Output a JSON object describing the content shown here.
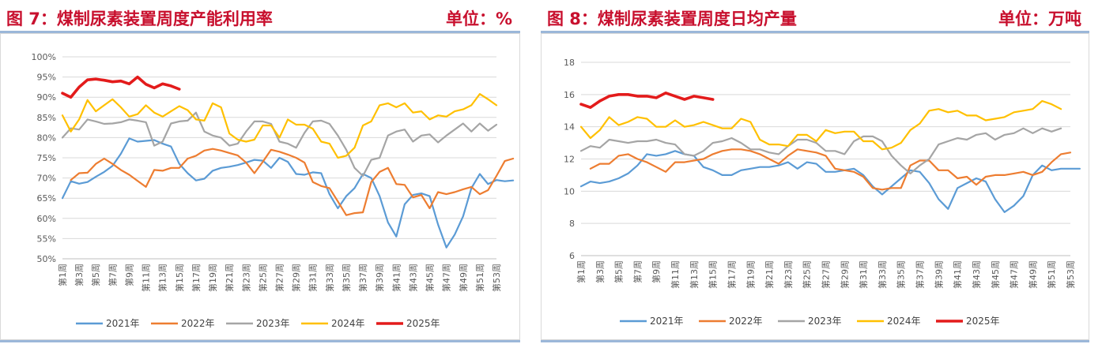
{
  "panels": [
    {
      "title": "图 7：煤制尿素装置周度产能利用率",
      "unit": "单位：%"
    },
    {
      "title": "图 8：煤制尿素装置周度日均产量",
      "unit": "单位：万吨"
    }
  ],
  "chart_data": [
    {
      "type": "line",
      "ylim": [
        50,
        100
      ],
      "yticks": [
        50,
        55,
        60,
        65,
        70,
        75,
        80,
        85,
        90,
        95,
        100
      ],
      "ytick_labels": [
        "50%",
        "55%",
        "60%",
        "65%",
        "70%",
        "75%",
        "80%",
        "85%",
        "90%",
        "95%",
        "100%"
      ],
      "x_tick_labels": [
        "第1周",
        "第3周",
        "第5周",
        "第7周",
        "第9周",
        "第11周",
        "第13周",
        "第15周",
        "第17周",
        "第19周",
        "第21周",
        "第23周",
        "第25周",
        "第27周",
        "第29周",
        "第31周",
        "第33周",
        "第35周",
        "第37周",
        "第39周",
        "第41周",
        "第43周",
        "第45周",
        "第47周",
        "第49周",
        "第51周",
        "第53周"
      ],
      "grid": true,
      "legend": "bottom",
      "series": [
        {
          "name": "2021年",
          "color": "#5b9bd5",
          "values": [
            65,
            69.2,
            68.6,
            69,
            70.3,
            71.5,
            73,
            76,
            79.8,
            79,
            79.2,
            79.4,
            78.5,
            77.8,
            73.5,
            71.2,
            69.4,
            69.8,
            71.8,
            72.5,
            72.8,
            73.2,
            73.8,
            74.5,
            74.3,
            72.5,
            75,
            74,
            71,
            70.8,
            71.4,
            71.2,
            66,
            62.5,
            65.5,
            67.5,
            71,
            70,
            65.5,
            59,
            55.5,
            63.5,
            65.8,
            66.2,
            65.5,
            58.5,
            52.8,
            56,
            60.5,
            67.5,
            71,
            68.5,
            69.5,
            69.2,
            69.4
          ]
        },
        {
          "name": "2022年",
          "color": "#ed7d31",
          "values": [
            null,
            69.5,
            71.2,
            71.3,
            73.5,
            74.8,
            73.5,
            72,
            70.8,
            69.3,
            67.8,
            72,
            71.8,
            72.5,
            72.5,
            74.8,
            75.5,
            76.8,
            77.2,
            76.8,
            76.2,
            75.6,
            73.8,
            71.2,
            74,
            77,
            76.5,
            75.8,
            75,
            73.8,
            69,
            68,
            67.5,
            64.2,
            60.8,
            61.3,
            61.5,
            69,
            71.5,
            72.5,
            68.5,
            68.3,
            65.2,
            65.8,
            62.5,
            66.5,
            66,
            66.5,
            67.2,
            67.8,
            66,
            67,
            70.5,
            74.2,
            74.8
          ]
        },
        {
          "name": "2023年",
          "color": "#a5a5a5",
          "values": [
            80,
            82.3,
            82,
            84.5,
            84,
            83.4,
            83.5,
            83.8,
            84.5,
            84.2,
            83.8,
            78,
            79,
            83.5,
            84,
            84.2,
            86.2,
            81.5,
            80.5,
            80,
            78,
            78.5,
            81.5,
            84,
            84,
            83.4,
            79,
            78.5,
            77.5,
            81.2,
            84,
            84.2,
            83.4,
            80.5,
            77,
            72.5,
            70.5,
            74.5,
            75,
            80.5,
            81.5,
            82,
            79,
            80.5,
            80.8,
            78.8,
            80.5,
            82,
            83.5,
            81.5,
            83.5,
            81.7,
            83.2
          ]
        },
        {
          "name": "2024年",
          "color": "#ffc000",
          "values": [
            85.5,
            81.5,
            84.5,
            89.3,
            86.5,
            88,
            89.5,
            87.5,
            85.2,
            85.8,
            88,
            86.2,
            85.2,
            86.5,
            87.8,
            86.8,
            84.5,
            84.2,
            88.5,
            87.5,
            81,
            79.5,
            79,
            79.5,
            83,
            83,
            80,
            84.5,
            83.2,
            83.2,
            82.2,
            79,
            78.5,
            75,
            75.5,
            77.5,
            83,
            84,
            88,
            88.5,
            87.5,
            88.5,
            86.2,
            86.5,
            84.5,
            85.5,
            85.2,
            86.5,
            87,
            88,
            90.8,
            89.5,
            88
          ]
        },
        {
          "name": "2025年",
          "color": "#e31b1b",
          "width": 3.6,
          "values": [
            91,
            90,
            92.5,
            94.3,
            94.5,
            94.2,
            93.8,
            94,
            93.3,
            95,
            93.2,
            92.3,
            93.3,
            92.8,
            92
          ]
        }
      ]
    },
    {
      "type": "line",
      "ylim": [
        6,
        18
      ],
      "yticks": [
        6,
        8,
        10,
        12,
        14,
        16,
        18
      ],
      "ytick_labels": [
        "6",
        "8",
        "10",
        "12",
        "14",
        "16",
        "18"
      ],
      "x_tick_labels": [
        "第1周",
        "第3周",
        "第5周",
        "第7周",
        "第9周",
        "第11周",
        "第13周",
        "第15周",
        "第17周",
        "第19周",
        "第21周",
        "第23周",
        "第25周",
        "第27周",
        "第29周",
        "第31周",
        "第33周",
        "第35周",
        "第37周",
        "第39周",
        "第41周",
        "第43周",
        "第45周",
        "第47周",
        "第49周",
        "第51周",
        "第53周"
      ],
      "grid": true,
      "legend": "bottom",
      "series": [
        {
          "name": "2021年",
          "color": "#5b9bd5",
          "values": [
            10.3,
            10.6,
            10.5,
            10.6,
            10.8,
            11.1,
            11.6,
            12.3,
            12.2,
            12.3,
            12.5,
            12.3,
            12.2,
            11.5,
            11.3,
            11,
            11,
            11.3,
            11.4,
            11.5,
            11.5,
            11.6,
            11.8,
            11.4,
            11.8,
            11.7,
            11.2,
            11.2,
            11.3,
            11.4,
            11,
            10.3,
            9.8,
            10.3,
            10.8,
            11.3,
            11.2,
            10.5,
            9.5,
            8.9,
            10.2,
            10.5,
            10.8,
            10.6,
            9.5,
            8.7,
            9.1,
            9.7,
            11,
            11.6,
            11.3,
            11.4,
            11.4,
            11.4
          ]
        },
        {
          "name": "2022年",
          "color": "#ed7d31",
          "values": [
            null,
            11.4,
            11.7,
            11.7,
            12.2,
            12.3,
            12,
            11.8,
            11.5,
            11.2,
            11.8,
            11.8,
            11.9,
            12,
            12.3,
            12.5,
            12.6,
            12.6,
            12.5,
            12.3,
            12,
            11.7,
            12.2,
            12.6,
            12.5,
            12.4,
            12.2,
            11.4,
            11.3,
            11.2,
            10.9,
            10.2,
            10.1,
            10.2,
            10.2,
            11.6,
            11.9,
            11.9,
            11.3,
            11.3,
            10.8,
            10.9,
            10.4,
            10.9,
            11,
            11,
            11.1,
            11.2,
            11,
            11.2,
            11.8,
            12.3,
            12.4
          ]
        },
        {
          "name": "2023年",
          "color": "#a5a5a5",
          "values": [
            12.5,
            12.8,
            12.7,
            13.2,
            13.1,
            13,
            13.1,
            13.1,
            13.2,
            13,
            12.9,
            12.3,
            12.2,
            12.5,
            13,
            13.1,
            13.3,
            13,
            12.6,
            12.6,
            12.4,
            12.3,
            12.8,
            13.2,
            13.2,
            13,
            12.5,
            12.5,
            12.3,
            13.1,
            13.4,
            13.4,
            13.1,
            12.2,
            11.6,
            11.1,
            11.6,
            12,
            12.9,
            13.1,
            13.3,
            13.2,
            13.5,
            13.6,
            13.2,
            13.5,
            13.6,
            13.9,
            13.6,
            13.9,
            13.7,
            13.9
          ]
        },
        {
          "name": "2024年",
          "color": "#ffc000",
          "values": [
            14,
            13.3,
            13.8,
            14.6,
            14.1,
            14.3,
            14.6,
            14.5,
            14,
            14,
            14.4,
            14,
            14.1,
            14.3,
            14.1,
            13.9,
            13.9,
            14.5,
            14.3,
            13.2,
            12.9,
            12.9,
            12.8,
            13.5,
            13.5,
            13.1,
            13.8,
            13.6,
            13.7,
            13.7,
            13.1,
            13.1,
            12.6,
            12.7,
            13,
            13.8,
            14.2,
            15,
            15.1,
            14.9,
            15,
            14.7,
            14.7,
            14.4,
            14.5,
            14.6,
            14.9,
            15,
            15.1,
            15.6,
            15.4,
            15.1
          ]
        },
        {
          "name": "2025年",
          "color": "#e31b1b",
          "width": 3.6,
          "values": [
            15.4,
            15.2,
            15.6,
            15.9,
            16,
            16,
            15.9,
            15.9,
            15.8,
            16.1,
            15.9,
            15.7,
            15.9,
            15.8,
            15.7
          ]
        }
      ]
    }
  ]
}
